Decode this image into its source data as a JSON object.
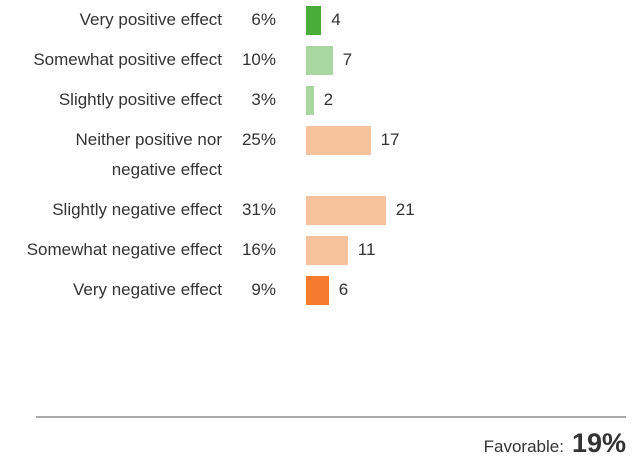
{
  "chart_data": {
    "type": "bar",
    "categories": [
      "Very positive effect",
      "Somewhat positive effect",
      "Slightly positive effect",
      "Neither positive nor negative effect",
      "Slightly negative effect",
      "Somewhat negative effect",
      "Very negative effect"
    ],
    "values": [
      4,
      7,
      2,
      17,
      21,
      11,
      6
    ],
    "percent_labels": [
      "6%",
      "10%",
      "3%",
      "25%",
      "31%",
      "16%",
      "9%"
    ],
    "colors": [
      "#4aad3a",
      "#a8d8a0",
      "#a8d8a0",
      "#f6c39e",
      "#f6c39e",
      "#f6c39e",
      "#f77b2e"
    ],
    "footer_label": "Favorable:",
    "footer_value": "19%"
  }
}
